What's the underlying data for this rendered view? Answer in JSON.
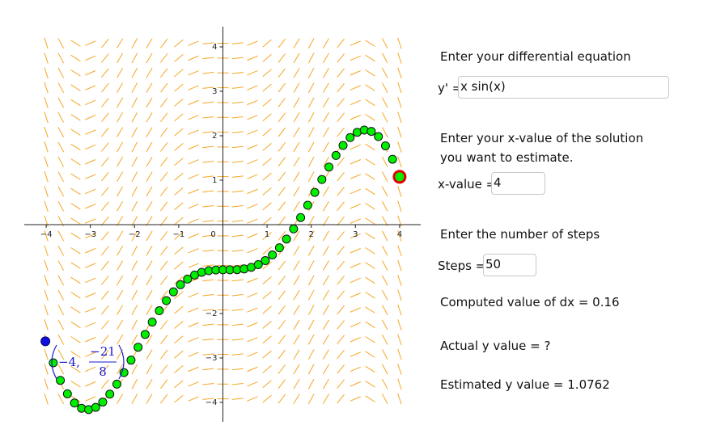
{
  "graph": {
    "x_tick_labels": [
      "−4",
      "−3",
      "−2",
      "−1",
      "0",
      "1",
      "2",
      "3",
      "4"
    ],
    "y_tick_labels": [
      "4",
      "3",
      "2",
      "1",
      "−2",
      "−3",
      "−4"
    ],
    "initial_point_label": {
      "x": "−4,",
      "numerator": "−21",
      "denominator": "8"
    }
  },
  "panel": {
    "equation_prompt": "Enter your differential equation",
    "equation_label": "y' =",
    "equation_input": "x sin(x)",
    "x_prompt_line1": "Enter your x-value of the solution",
    "x_prompt_line2": "you want to estimate.",
    "x_label": "x-value =",
    "x_input": "4",
    "steps_prompt": "Enter the number of steps",
    "steps_label": "Steps =",
    "steps_input": "50",
    "dx_text": "Computed value of dx = 0.16",
    "actual_text": "Actual y value = ?",
    "estimated_text": "Estimated y value = 1.0762"
  }
}
